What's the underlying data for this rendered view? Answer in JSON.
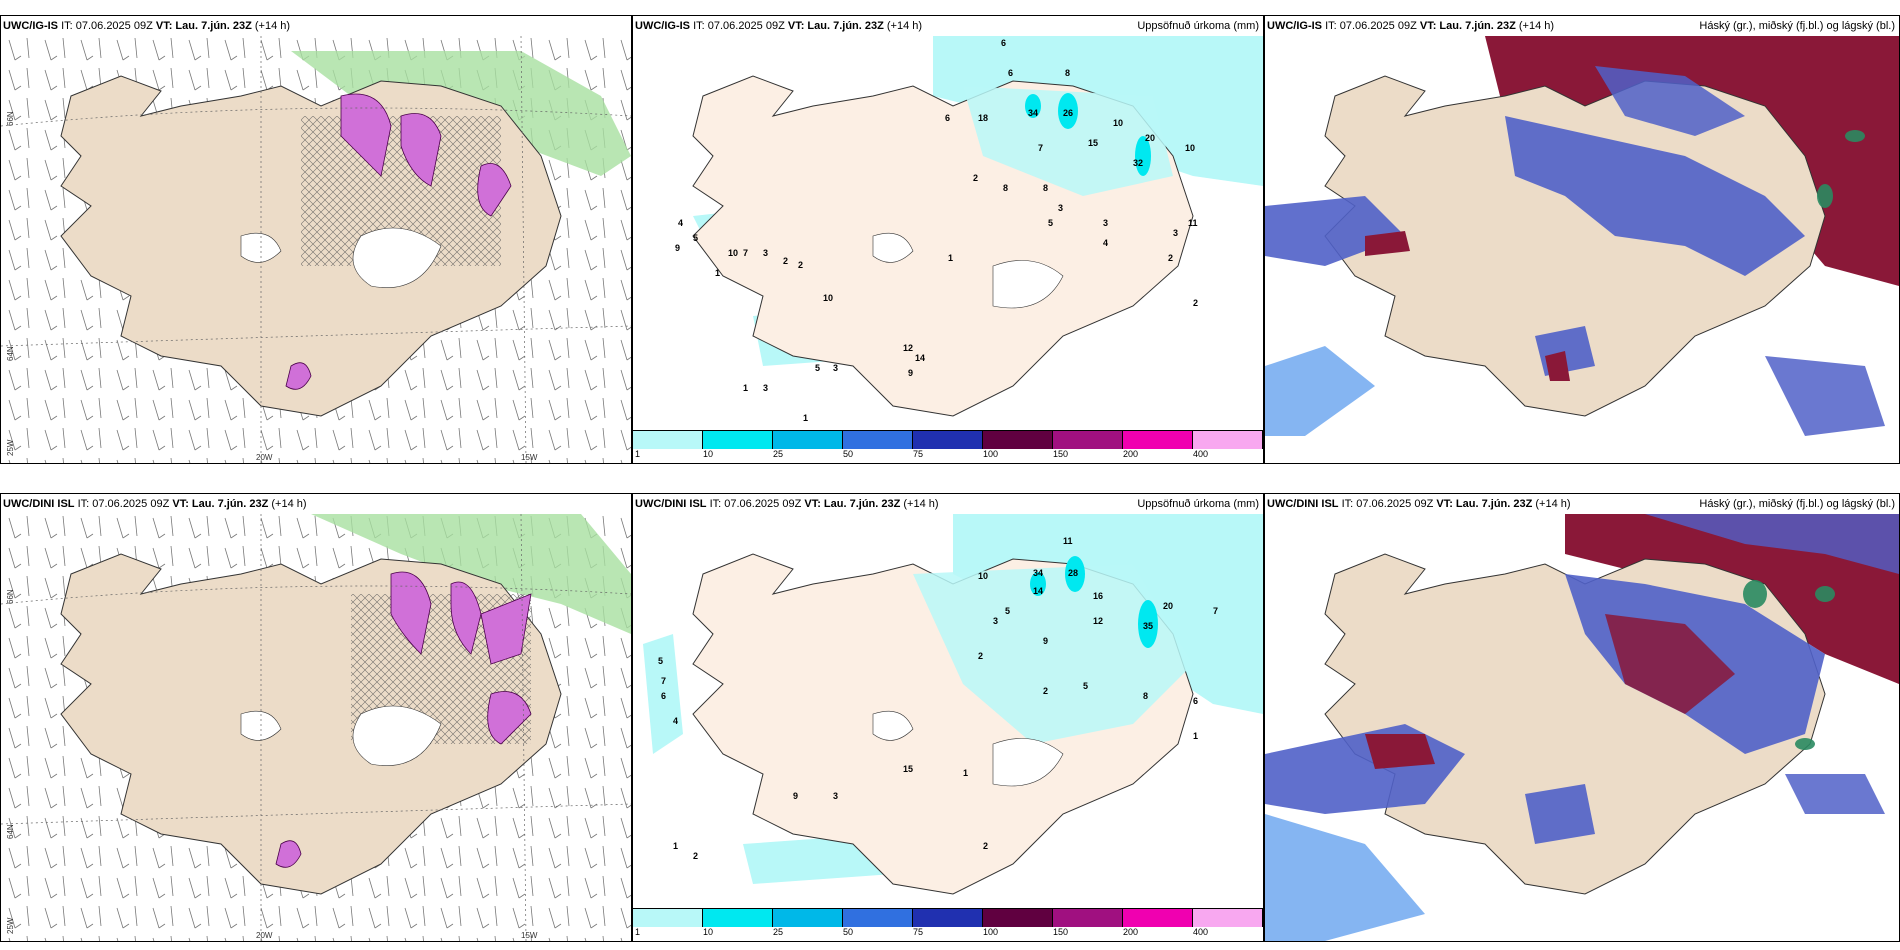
{
  "panels": [
    {
      "model": "UWC/IG-IS",
      "it": "IT: 07.06.2025 09Z",
      "vt_label": "VT:",
      "vt": "Lau. 7.jún. 23Z",
      "lead": "(+14 h)",
      "right_title": ""
    },
    {
      "model": "UWC/IG-IS",
      "it": "IT: 07.06.2025 09Z",
      "vt_label": "VT:",
      "vt": "Lau. 7.jún. 23Z",
      "lead": "(+14 h)",
      "right_title": "Uppsöfnuð úrkoma (mm)"
    },
    {
      "model": "UWC/IG-IS",
      "it": "IT: 07.06.2025 09Z",
      "vt_label": "VT:",
      "vt": "Lau. 7.jún. 23Z",
      "lead": "(+14 h)",
      "right_title": "Háský (gr.), miðský (fj.bl.) og lágský (bl.)"
    },
    {
      "model": "UWC/DINI ISL",
      "it": "IT: 07.06.2025 09Z",
      "vt_label": "VT:",
      "vt": "Lau. 7.jún. 23Z",
      "lead": "(+14 h)",
      "right_title": ""
    },
    {
      "model": "UWC/DINI ISL",
      "it": "IT: 07.06.2025 09Z",
      "vt_label": "VT:",
      "vt": "Lau. 7.jún. 23Z",
      "lead": "(+14 h)",
      "right_title": "Uppsöfnuð úrkoma (mm)"
    },
    {
      "model": "UWC/DINI ISL",
      "it": "IT: 07.06.2025 09Z",
      "vt_label": "VT:",
      "vt": "Lau. 7.jún. 23Z",
      "lead": "(+14 h)",
      "right_title": "Háský (gr.), miðský (fj.bl.) og lágský (bl.)"
    }
  ],
  "axes": {
    "lat_labels": [
      "66N",
      "64N",
      "25W"
    ],
    "lon_labels": [
      "20W",
      "15W"
    ]
  },
  "legend": {
    "labels": [
      "1",
      "10",
      "25",
      "50",
      "75",
      "100",
      "150",
      "200",
      "400"
    ],
    "colors": [
      "#b8f8f8",
      "#00e8f0",
      "#00b8e8",
      "#3070e0",
      "#2030b0",
      "#600040",
      "#a01080",
      "#f000b0",
      "#f8a8f0"
    ]
  },
  "precip_top": [
    "6",
    "8",
    "6",
    "18",
    "6",
    "34",
    "26",
    "15",
    "10",
    "10",
    "20",
    "32",
    "7",
    "8",
    "3",
    "2",
    "5",
    "3",
    "4",
    "3",
    "11",
    "1",
    "9",
    "5",
    "10",
    "7",
    "3",
    "2",
    "2",
    "1",
    "10",
    "12",
    "14",
    "9",
    "5",
    "3",
    "1",
    "3",
    "1",
    "8",
    "2",
    "2",
    "4"
  ],
  "precip_bottom": [
    "11",
    "34",
    "28",
    "16",
    "10",
    "14",
    "5",
    "3",
    "2",
    "2",
    "8",
    "9",
    "5",
    "15",
    "9",
    "3",
    "1",
    "2",
    "1",
    "2",
    "1",
    "7",
    "7",
    "5",
    "6",
    "6",
    "4",
    "35",
    "20",
    "12"
  ],
  "colors": {
    "land": "#ecdcc8",
    "ocean": "#ffffff",
    "precip_light": "#b8f8f8",
    "precip_land": "#fcefe4",
    "green_field": "#a8e0a0",
    "magenta": "#d070d8",
    "high_cloud": "#8a1838",
    "mid_cloud": "#5060c8",
    "low_cloud": "#70a8f0"
  }
}
